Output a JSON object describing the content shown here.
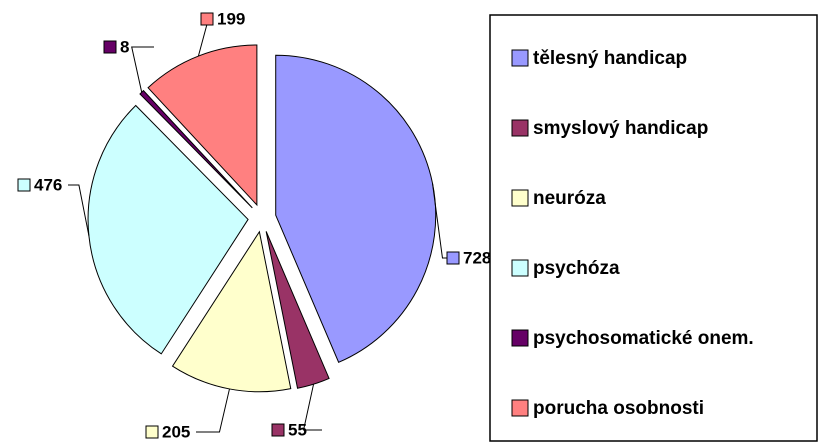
{
  "chart_data": {
    "type": "pie",
    "categories": [
      "tělesný handicap",
      "smyslový handicap",
      "neuróza",
      "psychóza",
      "psychosomatické onem.",
      "porucha osobnosti"
    ],
    "values": [
      728,
      55,
      205,
      476,
      8,
      199
    ],
    "colors": [
      "#9999FF",
      "#993366",
      "#FFFFCC",
      "#CCFFFF",
      "#660066",
      "#FF8080"
    ]
  }
}
